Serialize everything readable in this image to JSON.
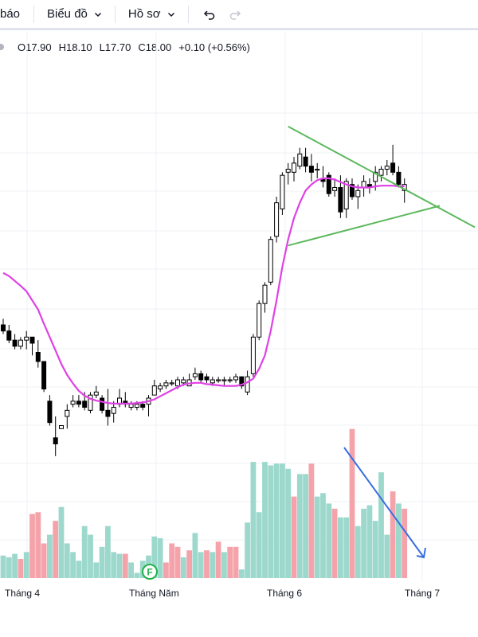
{
  "toolbar": {
    "cut_label": "báo",
    "menu1_label": "Biểu đồ",
    "menu2_label": "Hồ sơ"
  },
  "legend": {
    "open": "O17.90",
    "high": "H18.10",
    "low": "L17.70",
    "close": "C18.00",
    "change": "+0.10 (+0.56%)"
  },
  "colors": {
    "up": "#26a69a",
    "down": "#000000",
    "vol_up": "#9dd8cc",
    "vol_down": "#f4a3ab",
    "ma": "#e040e6",
    "trendline": "#5cb85c",
    "arrow": "#3a6fe0"
  },
  "icons": [
    "undo-icon",
    "redo-icon",
    "chevron-down-icon",
    "event-f-icon"
  ],
  "event_marker": "F",
  "chart_data": {
    "type": "candlestick",
    "x_ticks": [
      "Tháng 4",
      "Tháng Năm",
      "Tháng 6",
      "Tháng 7"
    ],
    "ohlc": [
      [
        15.7,
        15.8,
        15.55,
        15.6
      ],
      [
        15.6,
        15.7,
        15.4,
        15.45
      ],
      [
        15.45,
        15.55,
        15.3,
        15.35
      ],
      [
        15.35,
        15.5,
        15.3,
        15.45
      ],
      [
        15.45,
        15.6,
        15.3,
        15.5
      ],
      [
        15.5,
        15.5,
        15.2,
        15.4
      ],
      [
        15.25,
        15.45,
        15.0,
        15.1
      ],
      [
        15.1,
        15.1,
        14.6,
        14.65
      ],
      [
        14.45,
        14.55,
        14.05,
        14.1
      ],
      [
        13.85,
        14.2,
        13.55,
        13.75
      ],
      [
        14.0,
        14.05,
        14.0,
        14.05
      ],
      [
        14.2,
        14.4,
        14.0,
        14.3
      ],
      [
        14.4,
        14.55,
        14.35,
        14.45
      ],
      [
        14.45,
        14.55,
        14.35,
        14.4
      ],
      [
        14.45,
        14.6,
        14.3,
        14.35
      ],
      [
        14.3,
        14.6,
        14.25,
        14.55
      ],
      [
        14.55,
        14.7,
        14.5,
        14.6
      ],
      [
        14.5,
        14.55,
        14.25,
        14.3
      ],
      [
        14.3,
        14.65,
        14.05,
        14.2
      ],
      [
        14.25,
        14.45,
        14.1,
        14.35
      ],
      [
        14.4,
        14.65,
        14.35,
        14.5
      ],
      [
        14.45,
        14.6,
        14.35,
        14.4
      ],
      [
        14.35,
        14.45,
        14.3,
        14.4
      ],
      [
        14.35,
        14.45,
        14.3,
        14.4
      ],
      [
        14.4,
        14.45,
        14.3,
        14.35
      ],
      [
        14.4,
        14.55,
        14.2,
        14.5
      ],
      [
        14.55,
        14.8,
        14.55,
        14.7
      ],
      [
        14.65,
        14.75,
        14.6,
        14.7
      ],
      [
        14.7,
        14.8,
        14.65,
        14.75
      ],
      [
        14.75,
        14.8,
        14.7,
        14.75
      ],
      [
        14.7,
        14.85,
        14.65,
        14.8
      ],
      [
        14.75,
        14.85,
        14.7,
        14.8
      ],
      [
        14.7,
        14.9,
        14.7,
        14.8
      ],
      [
        14.85,
        15.0,
        14.8,
        14.9
      ],
      [
        14.9,
        14.95,
        14.75,
        14.8
      ],
      [
        14.85,
        14.9,
        14.75,
        14.8
      ],
      [
        14.75,
        14.85,
        14.7,
        14.8
      ],
      [
        14.8,
        14.85,
        14.75,
        14.8
      ],
      [
        14.8,
        14.85,
        14.7,
        14.8
      ],
      [
        14.8,
        14.85,
        14.75,
        14.8
      ],
      [
        14.8,
        14.9,
        14.75,
        14.85
      ],
      [
        14.85,
        14.85,
        14.65,
        14.7
      ],
      [
        14.6,
        14.95,
        14.55,
        14.85
      ],
      [
        14.9,
        15.55,
        14.85,
        15.5
      ],
      [
        15.5,
        16.1,
        15.45,
        16.05
      ],
      [
        16.05,
        16.4,
        15.9,
        16.35
      ],
      [
        16.4,
        17.15,
        16.35,
        17.1
      ],
      [
        17.15,
        17.8,
        17.05,
        17.7
      ],
      [
        17.6,
        18.2,
        17.5,
        18.15
      ],
      [
        18.2,
        18.35,
        18.0,
        18.25
      ],
      [
        18.2,
        18.45,
        18.05,
        18.35
      ],
      [
        18.3,
        18.6,
        18.25,
        18.5
      ],
      [
        18.45,
        18.6,
        18.2,
        18.3
      ],
      [
        18.3,
        18.5,
        18.05,
        18.2
      ],
      [
        18.25,
        18.35,
        18.1,
        18.25
      ],
      [
        18.1,
        18.3,
        17.95,
        18.05
      ],
      [
        18.15,
        18.2,
        17.8,
        17.85
      ],
      [
        17.9,
        18.1,
        17.8,
        17.95
      ],
      [
        17.95,
        18.15,
        17.45,
        17.55
      ],
      [
        17.6,
        18.1,
        17.45,
        18.05
      ],
      [
        18.0,
        18.1,
        17.75,
        17.8
      ],
      [
        17.8,
        18.0,
        17.6,
        17.9
      ],
      [
        17.95,
        18.15,
        17.8,
        18.05
      ],
      [
        18.0,
        18.1,
        17.85,
        17.95
      ],
      [
        18.05,
        18.3,
        17.9,
        18.2
      ],
      [
        18.15,
        18.3,
        18.05,
        18.25
      ],
      [
        18.25,
        18.4,
        18.15,
        18.3
      ],
      [
        18.35,
        18.65,
        18.15,
        18.2
      ],
      [
        18.2,
        18.3,
        17.95,
        18.0
      ],
      [
        17.9,
        18.1,
        17.7,
        18.0
      ]
    ],
    "ma": [
      16.55,
      16.5,
      16.42,
      16.34,
      16.25,
      16.1,
      15.95,
      15.72,
      15.5,
      15.28,
      15.06,
      14.88,
      14.74,
      14.62,
      14.54,
      14.49,
      14.46,
      14.44,
      14.42,
      14.41,
      14.41,
      14.41,
      14.41,
      14.42,
      14.43,
      14.45,
      14.48,
      14.53,
      14.58,
      14.63,
      14.68,
      14.72,
      14.74,
      14.75,
      14.75,
      14.73,
      14.72,
      14.71,
      14.7,
      14.7,
      14.7,
      14.72,
      14.76,
      14.82,
      14.98,
      15.2,
      15.6,
      16.1,
      16.65,
      17.1,
      17.45,
      17.7,
      17.9,
      18.0,
      18.07,
      18.1,
      18.1,
      18.08,
      18.04,
      18.0,
      17.97,
      17.95,
      17.95,
      17.95,
      17.97,
      17.98,
      17.98,
      17.98,
      17.97,
      17.97
    ],
    "volume": [
      [
        130,
        "up"
      ],
      [
        120,
        "up"
      ],
      [
        140,
        "up"
      ],
      [
        110,
        "down"
      ],
      [
        150,
        "up"
      ],
      [
        370,
        "down"
      ],
      [
        380,
        "down"
      ],
      [
        200,
        "down"
      ],
      [
        250,
        "up"
      ],
      [
        330,
        "down"
      ],
      [
        410,
        "up"
      ],
      [
        200,
        "up"
      ],
      [
        150,
        "up"
      ],
      [
        100,
        "up"
      ],
      [
        300,
        "up"
      ],
      [
        250,
        "up"
      ],
      [
        90,
        "up"
      ],
      [
        180,
        "up"
      ],
      [
        300,
        "up"
      ],
      [
        150,
        "up"
      ],
      [
        140,
        "up"
      ],
      [
        140,
        "down"
      ],
      [
        90,
        "up"
      ],
      [
        30,
        "up"
      ],
      [
        100,
        "up"
      ],
      [
        130,
        "up"
      ],
      [
        240,
        "up"
      ],
      [
        230,
        "up"
      ],
      [
        90,
        "down"
      ],
      [
        200,
        "down"
      ],
      [
        180,
        "down"
      ],
      [
        120,
        "up"
      ],
      [
        160,
        "down"
      ],
      [
        260,
        "up"
      ],
      [
        150,
        "up"
      ],
      [
        160,
        "down"
      ],
      [
        150,
        "up"
      ],
      [
        210,
        "down"
      ],
      [
        150,
        "up"
      ],
      [
        180,
        "down"
      ],
      [
        180,
        "down"
      ],
      [
        50,
        "up"
      ],
      [
        320,
        "up"
      ],
      [
        670,
        "up"
      ],
      [
        380,
        "up"
      ],
      [
        670,
        "up"
      ],
      [
        650,
        "up"
      ],
      [
        660,
        "up"
      ],
      [
        660,
        "up"
      ],
      [
        630,
        "up"
      ],
      [
        470,
        "down"
      ],
      [
        600,
        "up"
      ],
      [
        600,
        "up"
      ],
      [
        660,
        "down"
      ],
      [
        470,
        "up"
      ],
      [
        490,
        "up"
      ],
      [
        430,
        "up"
      ],
      [
        400,
        "down"
      ],
      [
        350,
        "up"
      ],
      [
        350,
        "up"
      ],
      [
        860,
        "down"
      ],
      [
        300,
        "up"
      ],
      [
        400,
        "up"
      ],
      [
        420,
        "up"
      ],
      [
        330,
        "up"
      ],
      [
        610,
        "up"
      ],
      [
        250,
        "up"
      ],
      [
        500,
        "down"
      ],
      [
        430,
        "up"
      ],
      [
        400,
        "down"
      ]
    ],
    "volume_max": 900,
    "price_range": [
      11.5,
      20.5
    ],
    "annotations": {
      "triangle_upper": [
        [
          18.95,
          0
        ],
        [
          17.7,
          0
        ]
      ],
      "triangle_lower": [
        [
          17.0,
          0
        ],
        [
          17.65,
          0
        ]
      ]
    }
  }
}
